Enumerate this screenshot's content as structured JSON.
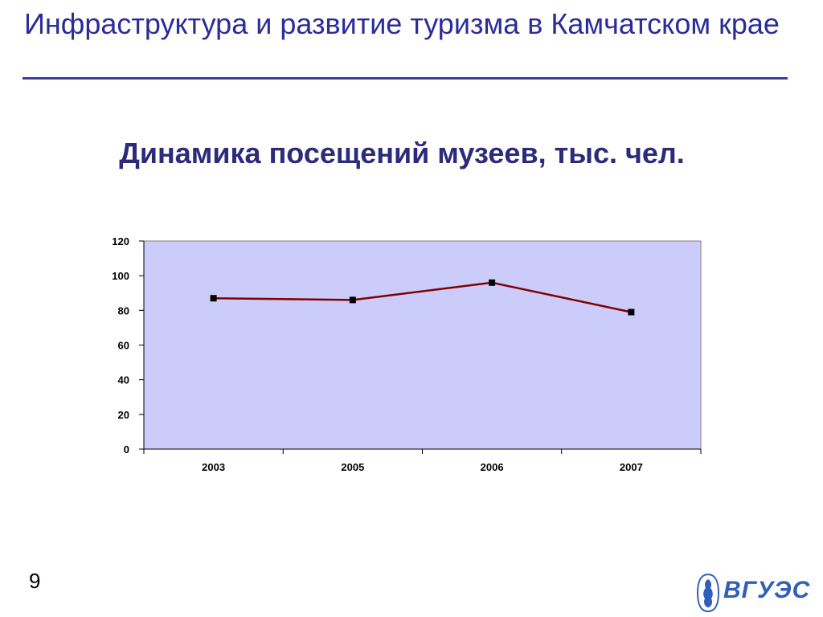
{
  "slide": {
    "title": "Инфраструктура и развитие туризма в Камчатском крае",
    "number": "9"
  },
  "logo": {
    "text": "ВГУЭС",
    "icon": "emblem-icon"
  },
  "colors": {
    "title": "#2b2b9a",
    "rule": "#3c3ca8",
    "plot_background": "#ccccfa",
    "series_line": "#800000",
    "marker": "#000000",
    "logo": "#2f5fb8"
  },
  "chart_data": {
    "type": "line",
    "title": "Динамика посещений музеев, тыс. чел.",
    "categories": [
      "2003",
      "2005",
      "2006",
      "2007"
    ],
    "series": [
      {
        "values": [
          87,
          86,
          96,
          79
        ]
      }
    ],
    "ylim": [
      0,
      120
    ],
    "yticks": [
      "0",
      "20",
      "40",
      "60",
      "80",
      "100",
      "120"
    ],
    "grid": false,
    "legend": "none"
  }
}
